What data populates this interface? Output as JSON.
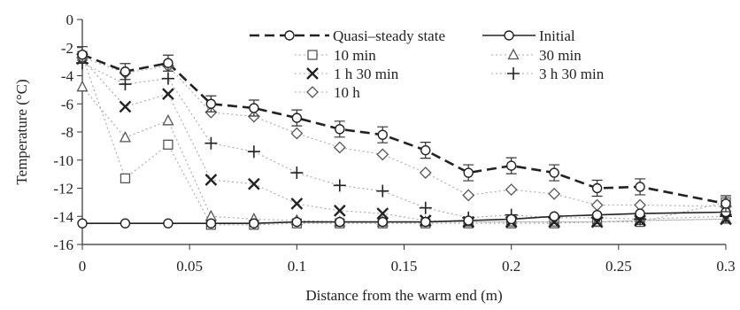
{
  "chart_data": {
    "type": "line",
    "xlabel": "Distance from the warm end (m)",
    "ylabel": "Temperature (°C)",
    "xlim": [
      0,
      0.3
    ],
    "ylim": [
      -16,
      0
    ],
    "xticks": [
      0,
      0.05,
      0.1,
      0.15,
      0.2,
      0.25,
      0.3
    ],
    "xtick_labels": [
      "0",
      "0.05",
      "0.1",
      "0.15",
      "0.2",
      "0.25",
      "0.3"
    ],
    "yticks": [
      0,
      -2,
      -4,
      -6,
      -8,
      -10,
      -12,
      -14,
      -16
    ],
    "ytick_labels": [
      "0",
      "-2",
      "-4",
      "-6",
      "-8",
      "-10",
      "-12",
      "-14",
      "-16"
    ],
    "grid": false,
    "legend_position": "top-right",
    "x": [
      0,
      0.02,
      0.04,
      0.06,
      0.08,
      0.1,
      0.12,
      0.14,
      0.16,
      0.18,
      0.2,
      0.22,
      0.24,
      0.26,
      0.3
    ],
    "series": [
      {
        "name": "Quasi–steady state",
        "marker": "circle",
        "line": "dashed-heavy",
        "color": "#222222",
        "error_bars": true,
        "values": [
          -2.5,
          -3.7,
          -3.1,
          -6.0,
          -6.3,
          -7.0,
          -7.8,
          -8.2,
          -9.3,
          -10.9,
          -10.4,
          -10.9,
          -12.0,
          -11.9,
          -13.1
        ]
      },
      {
        "name": "Initial",
        "marker": "circle",
        "line": "solid",
        "color": "#222222",
        "values": [
          -14.5,
          -14.5,
          -14.5,
          -14.5,
          -14.5,
          -14.4,
          -14.4,
          -14.4,
          -14.4,
          -14.3,
          -14.2,
          -14.0,
          -13.9,
          -13.8,
          -13.7
        ]
      },
      {
        "name": "10 min",
        "marker": "square",
        "line": "dotted",
        "color": "#999999",
        "values": [
          -2.6,
          -11.3,
          -8.9,
          -14.6,
          -14.6,
          -14.5,
          -14.5,
          -14.5,
          -14.5,
          -14.5,
          -14.5,
          -14.5,
          -14.4,
          -14.4,
          -13.0
        ]
      },
      {
        "name": "30 min",
        "marker": "triangle",
        "line": "dotted",
        "color": "#999999",
        "values": [
          -4.8,
          -8.4,
          -7.2,
          -14.0,
          -14.2,
          -14.3,
          -14.4,
          -14.4,
          -14.4,
          -14.4,
          -14.4,
          -14.4,
          -14.4,
          -14.3,
          -14.2
        ]
      },
      {
        "name": "1 h 30 min",
        "marker": "x",
        "line": "dotted",
        "color": "#999999",
        "values": [
          -2.8,
          -6.2,
          -5.3,
          -11.4,
          -11.7,
          -13.1,
          -13.6,
          -13.8,
          -14.3,
          -14.4,
          -14.4,
          -14.4,
          -14.4,
          -14.3,
          -14.2
        ]
      },
      {
        "name": "3 h 30 min",
        "marker": "plus",
        "line": "dotted",
        "color": "#999999",
        "values": [
          -3.1,
          -4.6,
          -4.2,
          -8.8,
          -9.4,
          -10.9,
          -11.8,
          -12.2,
          -13.4,
          -14.1,
          -13.9,
          -14.1,
          -14.1,
          -14.2,
          -14.0
        ]
      },
      {
        "name": "10 h",
        "marker": "diamond",
        "line": "dotted",
        "color": "#999999",
        "values": [
          -2.7,
          -3.8,
          -3.3,
          -6.6,
          -6.9,
          -8.1,
          -9.1,
          -9.6,
          -10.9,
          -12.5,
          -12.1,
          -12.4,
          -13.2,
          -13.2,
          -13.3
        ]
      }
    ]
  }
}
